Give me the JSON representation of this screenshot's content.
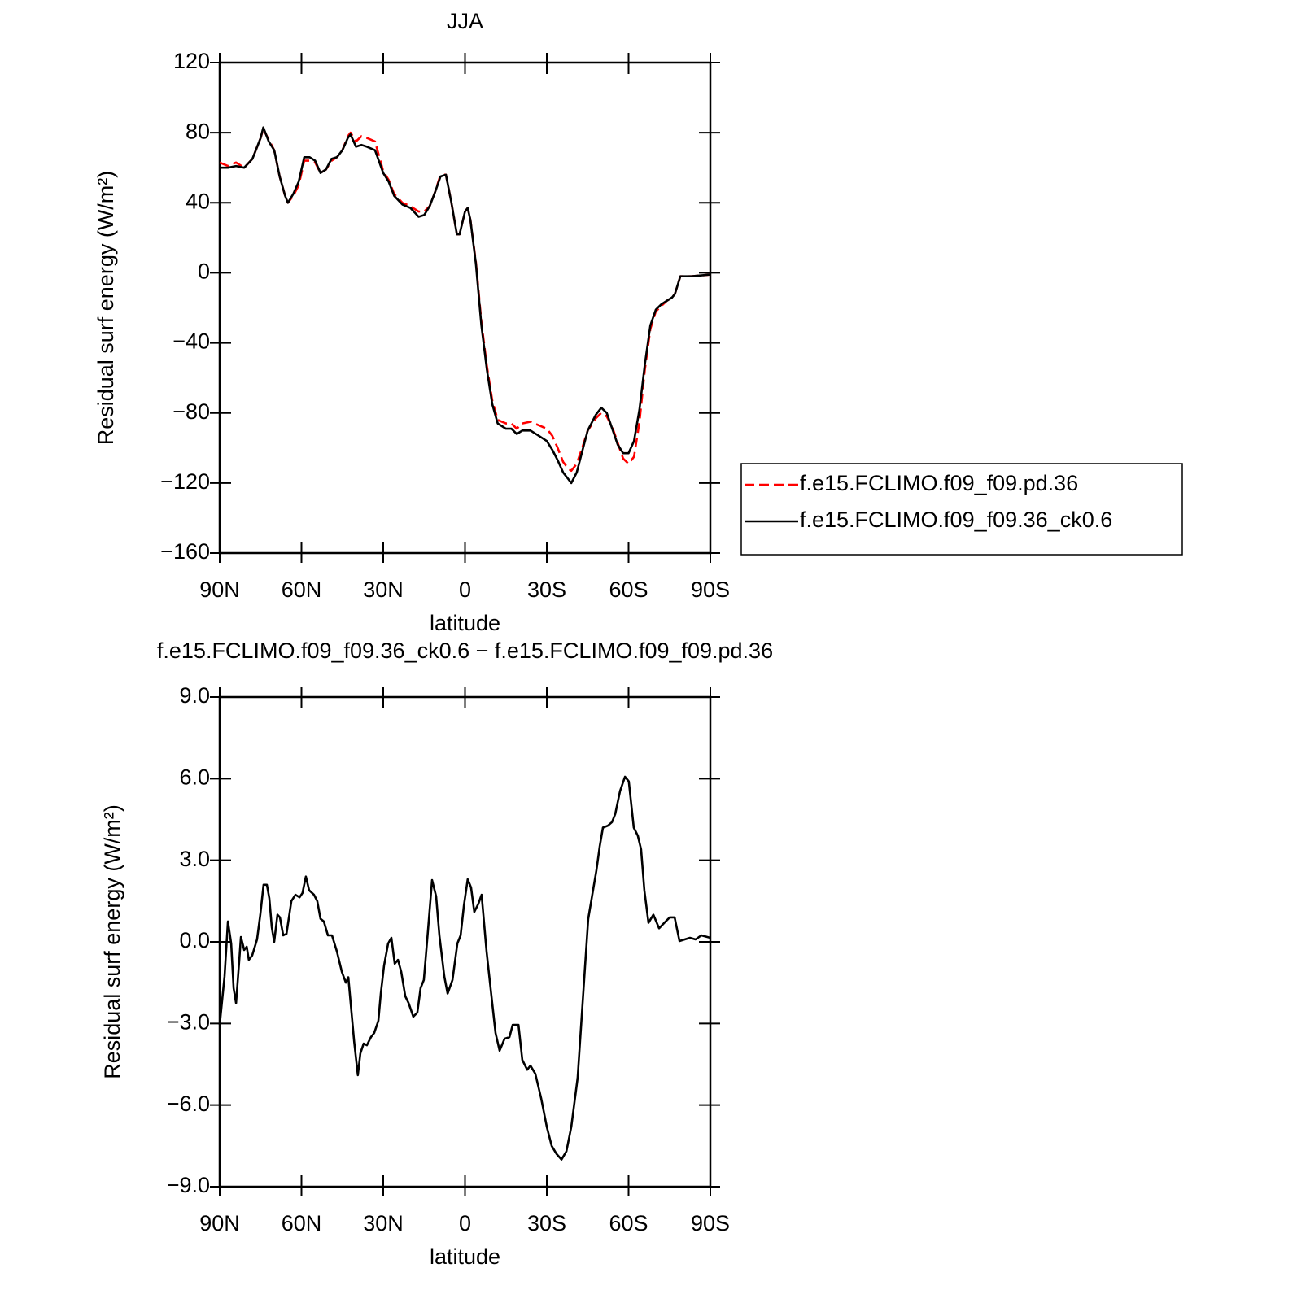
{
  "chart_data": [
    {
      "type": "line",
      "title": "JJA",
      "xlabel": "latitude",
      "ylabel": "Residual surf energy (W/m²)",
      "xlim": [
        90,
        -90
      ],
      "xticks": [
        {
          "value": 90,
          "label": "90N"
        },
        {
          "value": 60,
          "label": "60N"
        },
        {
          "value": 30,
          "label": "30N"
        },
        0,
        {
          "value": -30,
          "label": "30S"
        },
        {
          "value": -60,
          "label": "60S"
        },
        {
          "value": -90,
          "label": "90S"
        }
      ],
      "ylim": [
        -160,
        120
      ],
      "yticks": [
        120,
        80,
        40,
        0,
        {
          "value": -40,
          "label": "−40"
        },
        {
          "value": -80,
          "label": "−80"
        },
        {
          "value": -120,
          "label": "−120"
        },
        {
          "value": -160,
          "label": "−160"
        }
      ],
      "legend": "right",
      "x": [
        90,
        87,
        84,
        81,
        78,
        75,
        74,
        72,
        70,
        68,
        66,
        65,
        63,
        61,
        59,
        57,
        55,
        53,
        51,
        49,
        47,
        45,
        43,
        42,
        40,
        38,
        36,
        33,
        30,
        28,
        26,
        23,
        20,
        17,
        15,
        13,
        11,
        9,
        7,
        5,
        3,
        2,
        0,
        -1,
        -2,
        -4,
        -6,
        -8,
        -10,
        -12,
        -15,
        -17,
        -19,
        -21,
        -24,
        -27,
        -30,
        -32,
        -34,
        -36,
        -38,
        -39,
        -41,
        -43,
        -45,
        -48,
        -50,
        -52,
        -54,
        -56,
        -58,
        -60,
        -62,
        -64,
        -66,
        -68,
        -70,
        -72,
        -74,
        -76,
        -77,
        -79,
        -83,
        -90
      ],
      "series": [
        {
          "name": "f.e15.FCLIMO.f09_f09.pd.36",
          "color": "#ff0000",
          "dashed": true,
          "values": [
            63,
            61,
            63,
            60,
            65,
            77,
            82,
            76,
            70,
            55,
            44,
            40,
            44,
            50,
            64,
            64,
            63,
            57,
            59,
            64,
            66,
            70,
            78,
            80,
            75,
            78,
            77,
            75,
            58,
            53,
            45,
            40,
            38,
            35,
            35,
            38,
            46,
            56,
            56,
            40,
            22,
            22,
            35,
            37,
            30,
            6,
            -28,
            -53,
            -73,
            -84,
            -86,
            -86,
            -89,
            -86,
            -85,
            -87,
            -89,
            -93,
            -100,
            -108,
            -112,
            -113,
            -109,
            -100,
            -90,
            -83,
            -80,
            -82,
            -88,
            -97,
            -106,
            -109,
            -105,
            -85,
            -55,
            -32,
            -22,
            -19,
            -16,
            -14,
            -12,
            -2,
            -2,
            -1
          ]
        },
        {
          "name": "f.e15.FCLIMO.f09_f09.36_ck0.6",
          "color": "#000000",
          "dashed": false,
          "values": [
            60,
            60,
            61,
            60,
            65,
            77,
            83,
            75,
            70,
            55,
            44,
            40,
            45,
            52,
            66,
            66,
            64,
            57,
            59,
            65,
            66,
            70,
            77,
            79,
            72,
            73,
            72,
            70,
            57,
            52,
            44,
            39,
            37,
            32,
            33,
            38,
            46,
            55,
            56,
            40,
            22,
            22,
            35,
            37,
            30,
            5,
            -30,
            -55,
            -75,
            -86,
            -89,
            -89,
            -92,
            -90,
            -90,
            -93,
            -96,
            -101,
            -107,
            -114,
            -118,
            -120,
            -114,
            -102,
            -90,
            -81,
            -77,
            -80,
            -89,
            -98,
            -103,
            -103,
            -96,
            -78,
            -52,
            -30,
            -21,
            -18,
            -16,
            -14,
            -12,
            -2,
            -2,
            -1
          ]
        }
      ]
    },
    {
      "type": "line",
      "title": "f.e15.FCLIMO.f09_f09.36_ck0.6 − f.e15.FCLIMO.f09_f09.pd.36",
      "xlabel": "latitude",
      "ylabel": "Residual surf energy (W/m²)",
      "xlim": [
        90,
        -90
      ],
      "xticks": [
        {
          "value": 90,
          "label": "90N"
        },
        {
          "value": 60,
          "label": "60N"
        },
        {
          "value": 30,
          "label": "30N"
        },
        0,
        {
          "value": -30,
          "label": "30S"
        },
        {
          "value": -60,
          "label": "60S"
        },
        {
          "value": -90,
          "label": "90S"
        }
      ],
      "ylim": [
        -9,
        9
      ],
      "yticks": [
        {
          "value": 9,
          "label": "9.0"
        },
        {
          "value": 6,
          "label": "6.0"
        },
        {
          "value": 3,
          "label": "3.0"
        },
        {
          "value": 0,
          "label": "0.0"
        },
        {
          "value": -3,
          "label": "−3.0"
        },
        {
          "value": -6,
          "label": "−6.0"
        },
        {
          "value": -9,
          "label": "−9.0"
        }
      ],
      "x": [
        90,
        88.2,
        87,
        85.8,
        84.9,
        84,
        82.8,
        82.2,
        81,
        80.1,
        79.3,
        78.1,
        76.3,
        75.1,
        73.9,
        72.7,
        71.8,
        70.9,
        70,
        68.8,
        67.9,
        66.7,
        65.5,
        63.7,
        62.2,
        60.7,
        59.6,
        58.4,
        57.2,
        55.4,
        54.2,
        53,
        51.8,
        50.3,
        48.8,
        47,
        45.2,
        43.7,
        42.8,
        41.9,
        40.7,
        39.3,
        38.4,
        37.2,
        36,
        34.5,
        33.3,
        31.8,
        30.9,
        29.7,
        28.2,
        27,
        25.8,
        24.6,
        23.4,
        21.9,
        20.7,
        19,
        17.5,
        16.3,
        15.1,
        13.6,
        12.1,
        10.6,
        9.4,
        7.6,
        6.4,
        4.6,
        2.8,
        1.6,
        0.4,
        -1,
        -2.2,
        -3.4,
        -4.9,
        -6.1,
        -7.9,
        -9.7,
        -11.2,
        -12.7,
        -14.5,
        -16.3,
        -17.5,
        -19.6,
        -21,
        -22.8,
        -24,
        -25.8,
        -27.9,
        -30,
        -31.8,
        -33.6,
        -35.4,
        -37.2,
        -39,
        -41.3,
        -43.4,
        -45.2,
        -46.7,
        -48.2,
        -49.4,
        -50.6,
        -52.4,
        -53.9,
        -55.1,
        -56.9,
        -58.7,
        -60.1,
        -61.9,
        -63.4,
        -64.6,
        -65.8,
        -67.3,
        -69.1,
        -71.2,
        -73.6,
        -75.1,
        -76.9,
        -78.7,
        -82.5,
        -84.6,
        -86.7,
        -90
      ],
      "series": [
        {
          "color": "#000000",
          "dashed": false,
          "values": [
            -3.05,
            -1.26,
            0.75,
            -0.06,
            -1.7,
            -2.25,
            -0.66,
            0.18,
            -0.3,
            -0.18,
            -0.66,
            -0.5,
            0.09,
            1,
            2.1,
            2.1,
            1.6,
            0.54,
            0,
            1,
            0.9,
            0.24,
            0.3,
            1.5,
            1.73,
            1.64,
            1.8,
            2.4,
            1.9,
            1.73,
            1.5,
            0.85,
            0.75,
            0.24,
            0.24,
            -0.36,
            -1.1,
            -1.5,
            -1.3,
            -2.3,
            -3.65,
            -4.9,
            -4.1,
            -3.74,
            -3.8,
            -3.5,
            -3.35,
            -2.9,
            -1.9,
            -0.87,
            -0.06,
            0.15,
            -0.8,
            -0.66,
            -1.1,
            -2,
            -2.25,
            -2.75,
            -2.6,
            -1.7,
            -1.4,
            0.39,
            2.27,
            1.67,
            0.24,
            -1.26,
            -1.9,
            -1.4,
            -0.06,
            0.24,
            1.35,
            2.3,
            2,
            1.1,
            1.4,
            1.73,
            -0.36,
            -2,
            -3.35,
            -4,
            -3.56,
            -3.5,
            -3.05,
            -3.05,
            -4.34,
            -4.7,
            -4.55,
            -4.85,
            -5.74,
            -6.8,
            -7.5,
            -7.8,
            -8,
            -7.7,
            -6.8,
            -5,
            -1.85,
            0.84,
            1.73,
            2.63,
            3.5,
            4.2,
            4.27,
            4.4,
            4.7,
            5.55,
            6.07,
            5.9,
            4.2,
            3.9,
            3.4,
            1.9,
            0.7,
            1,
            0.5,
            0.75,
            0.9,
            0.9,
            0.03,
            0.15,
            0.09,
            0.24,
            0.15
          ]
        }
      ]
    }
  ]
}
